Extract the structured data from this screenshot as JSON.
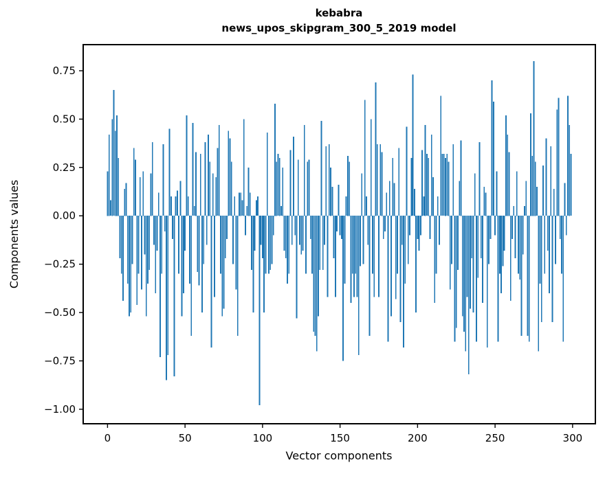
{
  "figure": {
    "background": "#ffffff"
  },
  "chart_data": {
    "type": "bar",
    "title": "kebabra",
    "subtitle": "news_upos_skipgram_300_5_2019 model",
    "xlabel": "Vector components",
    "ylabel": "Components values",
    "bar_color": "#1f77b4",
    "axis_color": "#000000",
    "grid": false,
    "legend": "none",
    "xlim": [
      -15.7,
      314.7
    ],
    "ylim": [
      -1.075,
      0.885
    ],
    "x_ticks": [
      {
        "label": "0",
        "value": 0
      },
      {
        "label": "50",
        "value": 50
      },
      {
        "label": "100",
        "value": 100
      },
      {
        "label": "150",
        "value": 150
      },
      {
        "label": "200",
        "value": 200
      },
      {
        "label": "250",
        "value": 250
      },
      {
        "label": "300",
        "value": 300
      }
    ],
    "y_ticks": [
      {
        "label": "0.75",
        "value": 0.75
      },
      {
        "label": "0.50",
        "value": 0.5
      },
      {
        "label": "0.25",
        "value": 0.25
      },
      {
        "label": "0.00",
        "value": 0.0
      },
      {
        "label": "−0.25",
        "value": -0.25
      },
      {
        "label": "−0.50",
        "value": -0.5
      },
      {
        "label": "−0.75",
        "value": -0.75
      },
      {
        "label": "−1.00",
        "value": -1.0
      }
    ],
    "x_start": 0,
    "values": [
      0.23,
      0.42,
      0.08,
      0.5,
      0.65,
      0.44,
      0.52,
      0.3,
      -0.22,
      -0.3,
      -0.44,
      0.14,
      0.17,
      -0.35,
      -0.52,
      -0.5,
      -0.25,
      0.35,
      0.29,
      -0.46,
      -0.3,
      0.2,
      -0.38,
      0.23,
      -0.2,
      -0.52,
      -0.35,
      -0.28,
      0.22,
      0.38,
      -0.15,
      -0.4,
      -0.18,
      0.12,
      -0.73,
      -0.3,
      0.37,
      -0.08,
      -0.85,
      -0.72,
      0.45,
      0.1,
      -0.12,
      -0.83,
      0.1,
      0.13,
      -0.3,
      0.18,
      -0.52,
      -0.4,
      -0.18,
      0.52,
      0.1,
      -0.35,
      -0.62,
      0.48,
      0.05,
      0.33,
      -0.29,
      -0.36,
      0.32,
      -0.5,
      -0.25,
      0.38,
      -0.15,
      0.42,
      0.28,
      -0.68,
      0.22,
      -0.42,
      0.2,
      0.35,
      0.47,
      -0.3,
      -0.52,
      -0.48,
      -0.22,
      -0.12,
      0.44,
      0.4,
      0.28,
      -0.25,
      0.1,
      -0.38,
      -0.62,
      0.12,
      0.12,
      0.08,
      0.5,
      -0.1,
      0.05,
      0.25,
      0.12,
      -0.28,
      -0.5,
      -0.18,
      0.08,
      0.1,
      -0.98,
      -0.15,
      -0.22,
      -0.5,
      -0.3,
      0.43,
      -0.3,
      -0.28,
      -0.25,
      -0.1,
      0.58,
      0.28,
      0.32,
      0.3,
      0.05,
      0.25,
      -0.18,
      -0.22,
      -0.35,
      -0.3,
      0.34,
      -0.15,
      0.41,
      -0.1,
      -0.53,
      0.29,
      -0.15,
      -0.2,
      -0.18,
      0.47,
      -0.3,
      0.28,
      0.29,
      -0.12,
      -0.3,
      -0.6,
      -0.62,
      -0.7,
      -0.52,
      -0.28,
      0.49,
      -0.28,
      -0.15,
      0.36,
      -0.42,
      0.37,
      0.25,
      0.15,
      -0.22,
      -0.42,
      -0.08,
      0.16,
      -0.1,
      -0.12,
      -0.75,
      -0.35,
      0.1,
      0.31,
      0.28,
      -0.45,
      -0.3,
      -0.42,
      -0.3,
      -0.42,
      -0.72,
      -0.26,
      0.22,
      -0.25,
      0.6,
      0.1,
      -0.15,
      -0.62,
      0.5,
      -0.3,
      -0.42,
      0.69,
      0.37,
      -0.42,
      0.37,
      0.33,
      -0.12,
      -0.08,
      0.12,
      -0.65,
      0.18,
      -0.52,
      0.3,
      0.17,
      -0.43,
      -0.3,
      0.35,
      -0.55,
      -0.15,
      -0.68,
      -0.35,
      0.46,
      -0.25,
      -0.1,
      0.3,
      0.73,
      0.14,
      -0.5,
      -0.12,
      -0.18,
      -0.1,
      0.34,
      0.1,
      0.47,
      0.32,
      0.3,
      -0.12,
      0.42,
      0.2,
      -0.45,
      -0.3,
      0.1,
      -0.15,
      0.62,
      0.32,
      0.32,
      0.3,
      0.32,
      0.28,
      -0.38,
      -0.25,
      0.37,
      -0.65,
      -0.58,
      -0.28,
      0.18,
      0.39,
      -0.52,
      -0.6,
      -0.7,
      -0.42,
      -0.82,
      -0.48,
      -0.22,
      -0.5,
      0.22,
      -0.65,
      -0.32,
      0.38,
      -0.22,
      -0.45,
      0.15,
      0.12,
      -0.68,
      -0.25,
      -0.12,
      0.7,
      0.59,
      -0.1,
      0.23,
      -0.65,
      -0.3,
      -0.4,
      -0.26,
      -0.18,
      0.52,
      0.42,
      0.33,
      -0.44,
      -0.12,
      0.05,
      -0.22,
      0.23,
      -0.3,
      -0.33,
      -0.62,
      -0.2,
      0.05,
      0.18,
      -0.62,
      -0.65,
      0.53,
      0.31,
      0.8,
      0.28,
      0.15,
      -0.7,
      -0.35,
      -0.55,
      0.26,
      -0.3,
      0.4,
      -0.18,
      -0.4,
      0.36,
      -0.55,
      0.14,
      -0.25,
      0.55,
      0.61,
      -0.12,
      -0.3,
      -0.65,
      0.17,
      -0.1,
      0.62,
      0.47,
      0.32
    ]
  }
}
